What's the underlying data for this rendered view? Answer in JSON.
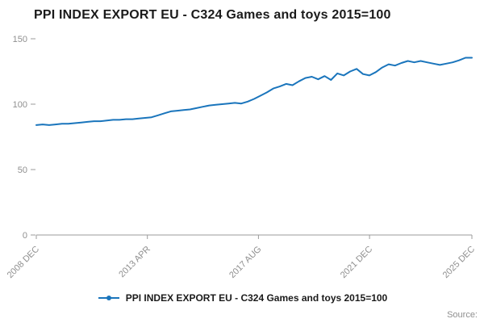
{
  "title": "PPI INDEX EXPORT EU - C324 Games and toys 2015=100",
  "legend": {
    "label": "PPI INDEX EXPORT EU - C324 Games and toys 2015=100"
  },
  "source_label": "Source:",
  "colors": {
    "line": "#1a75bc",
    "axis": "#9b9b9b",
    "tick_text": "#8f8f8f",
    "title_text": "#1a1a1a"
  },
  "chart_data": {
    "type": "line",
    "title": "PPI INDEX EXPORT EU - C324 Games and toys 2015=100",
    "series_name": "PPI INDEX EXPORT EU - C324 Games and toys 2015=100",
    "x_start": "2008-12",
    "x_end": "2025-12",
    "sampling": "quarterly estimates of monthly index series",
    "values": [
      84,
      84.5,
      84,
      84.5,
      85,
      85,
      85.5,
      86,
      86.5,
      87,
      87,
      87.5,
      88,
      88,
      88.5,
      88.5,
      89,
      89.5,
      90,
      91.5,
      93,
      94.5,
      95,
      95.5,
      96,
      97,
      98,
      99,
      99.5,
      100,
      100.5,
      101,
      100.5,
      102,
      104,
      106.5,
      109,
      112,
      113.5,
      115.5,
      114.5,
      117.5,
      120,
      121,
      119,
      121.5,
      118.5,
      123.5,
      122,
      125,
      127,
      123,
      122,
      124.5,
      128,
      130.5,
      129.5,
      131.5,
      133,
      132,
      133,
      132,
      131,
      130,
      131,
      132,
      133.5,
      135.5,
      135.5
    ],
    "x_ticks": [
      {
        "label": "2008 DEC",
        "pos": 0
      },
      {
        "label": "2013 APR",
        "pos": 0.255
      },
      {
        "label": "2017 AUG",
        "pos": 0.51
      },
      {
        "label": "2021 DEC",
        "pos": 0.765
      },
      {
        "label": "2025 DEC",
        "pos": 1
      }
    ],
    "y_ticks": [
      0,
      50,
      100,
      150
    ],
    "ylim": [
      0,
      150
    ],
    "grid": false,
    "legend_position": "bottom"
  }
}
